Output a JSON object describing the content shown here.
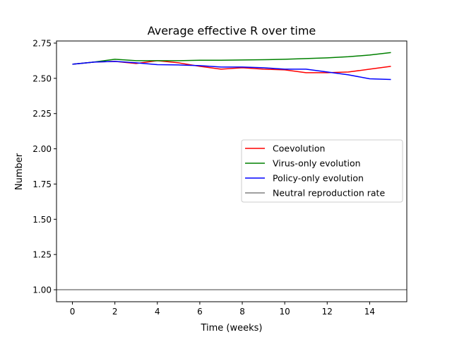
{
  "chart_data": {
    "type": "line",
    "title": "Average effective R over time",
    "xlabel": "Time (weeks)",
    "ylabel": "Number",
    "xlim": [
      -0.75,
      15.75
    ],
    "ylim": [
      0.915,
      2.765
    ],
    "x_ticks": [
      0,
      2,
      4,
      6,
      8,
      10,
      12,
      14
    ],
    "x_tick_labels": [
      "0",
      "2",
      "4",
      "6",
      "8",
      "10",
      "12",
      "14"
    ],
    "y_ticks": [
      1.0,
      1.25,
      1.5,
      1.75,
      2.0,
      2.25,
      2.5,
      2.75
    ],
    "y_tick_labels": [
      "1.00",
      "1.25",
      "1.50",
      "1.75",
      "2.00",
      "2.25",
      "2.50",
      "2.75"
    ],
    "grid": false,
    "legend_position": "center-right",
    "x": [
      0,
      1,
      2,
      3,
      4,
      5,
      6,
      7,
      8,
      9,
      10,
      11,
      12,
      13,
      14,
      15
    ],
    "series": [
      {
        "name": "Coevolution",
        "color": "#ff0000",
        "values": [
          2.6,
          2.615,
          2.62,
          2.605,
          2.625,
          2.61,
          2.585,
          2.565,
          2.575,
          2.565,
          2.56,
          2.54,
          2.54,
          2.545,
          2.565,
          2.585
        ]
      },
      {
        "name": "Virus-only evolution",
        "color": "#008000",
        "values": [
          2.6,
          2.615,
          2.635,
          2.625,
          2.625,
          2.625,
          2.628,
          2.628,
          2.63,
          2.632,
          2.635,
          2.64,
          2.645,
          2.653,
          2.665,
          2.683
        ]
      },
      {
        "name": "Policy-only evolution",
        "color": "#0000ff",
        "values": [
          2.6,
          2.615,
          2.62,
          2.61,
          2.597,
          2.595,
          2.59,
          2.58,
          2.58,
          2.575,
          2.565,
          2.565,
          2.545,
          2.525,
          2.497,
          2.492
        ]
      }
    ],
    "reference_line": {
      "name": "Neutral reproduction rate",
      "color": "#808080",
      "value": 1.0
    }
  }
}
